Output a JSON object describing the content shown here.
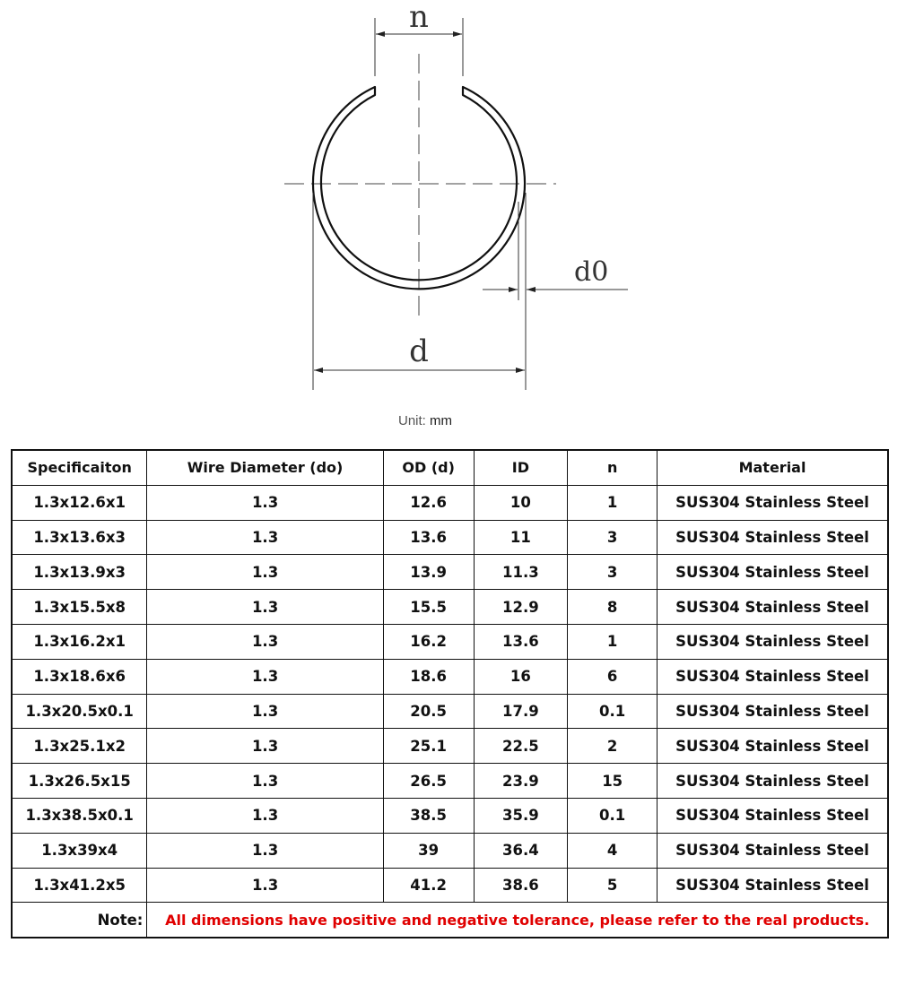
{
  "diagram": {
    "labels": {
      "n": "n",
      "d": "d",
      "d0": "d0"
    },
    "unit_label": "Unit:",
    "unit_value": "mm"
  },
  "table": {
    "headers": [
      "Specificaiton",
      "Wire Diameter (do)",
      "OD (d)",
      "ID",
      "n",
      "Material"
    ],
    "rows": [
      [
        "1.3x12.6x1",
        "1.3",
        "12.6",
        "10",
        "1",
        "SUS304 Stainless Steel"
      ],
      [
        "1.3x13.6x3",
        "1.3",
        "13.6",
        "11",
        "3",
        "SUS304 Stainless Steel"
      ],
      [
        "1.3x13.9x3",
        "1.3",
        "13.9",
        "11.3",
        "3",
        "SUS304 Stainless Steel"
      ],
      [
        "1.3x15.5x8",
        "1.3",
        "15.5",
        "12.9",
        "8",
        "SUS304 Stainless Steel"
      ],
      [
        "1.3x16.2x1",
        "1.3",
        "16.2",
        "13.6",
        "1",
        "SUS304 Stainless Steel"
      ],
      [
        "1.3x18.6x6",
        "1.3",
        "18.6",
        "16",
        "6",
        "SUS304 Stainless Steel"
      ],
      [
        "1.3x20.5x0.1",
        "1.3",
        "20.5",
        "17.9",
        "0.1",
        "SUS304 Stainless Steel"
      ],
      [
        "1.3x25.1x2",
        "1.3",
        "25.1",
        "22.5",
        "2",
        "SUS304 Stainless Steel"
      ],
      [
        "1.3x26.5x15",
        "1.3",
        "26.5",
        "23.9",
        "15",
        "SUS304 Stainless Steel"
      ],
      [
        "1.3x38.5x0.1",
        "1.3",
        "38.5",
        "35.9",
        "0.1",
        "SUS304 Stainless Steel"
      ],
      [
        "1.3x39x4",
        "1.3",
        "39",
        "36.4",
        "4",
        "SUS304 Stainless Steel"
      ],
      [
        "1.3x41.2x5",
        "1.3",
        "41.2",
        "38.6",
        "5",
        "SUS304 Stainless Steel"
      ]
    ],
    "note_label": "Note:",
    "note_text": "All dimensions have positive and negative tolerance, please refer to the real products."
  },
  "colors": {
    "note": "#e00000",
    "line": "#111111"
  }
}
